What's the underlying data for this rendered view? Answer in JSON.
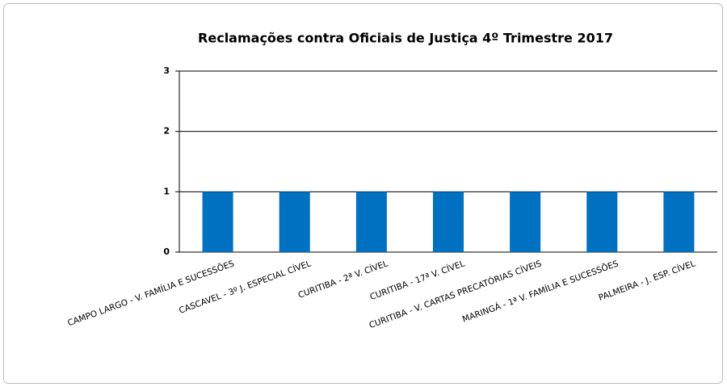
{
  "chart_data": {
    "type": "bar",
    "title": "Reclamações contra Oficiais de Justiça  4º Trimestre 2017",
    "categories": [
      "CAMPO LARGO - V. FAMÍLIA E SUCESSÕES",
      "CASCAVEL - 3º J. ESPECIAL CÍVEL",
      "CURITIBA - 2ª V. CÍVEL",
      "CURITIBA - 17ª V. CÍVEL",
      "CURITIBA - V. CARTAS PRECATÓRIAS CÍVEIS",
      "MARINGÁ - 1ª V. FAMÍLIA E SUCESSÕES",
      "PALMEIRA - J. ESP. CÍVEL"
    ],
    "values": [
      1,
      1,
      1,
      1,
      1,
      1,
      1
    ],
    "color": "#0070c0",
    "ylim": [
      0,
      3
    ],
    "yticks": [
      0,
      1,
      2,
      3
    ],
    "grid": true
  }
}
